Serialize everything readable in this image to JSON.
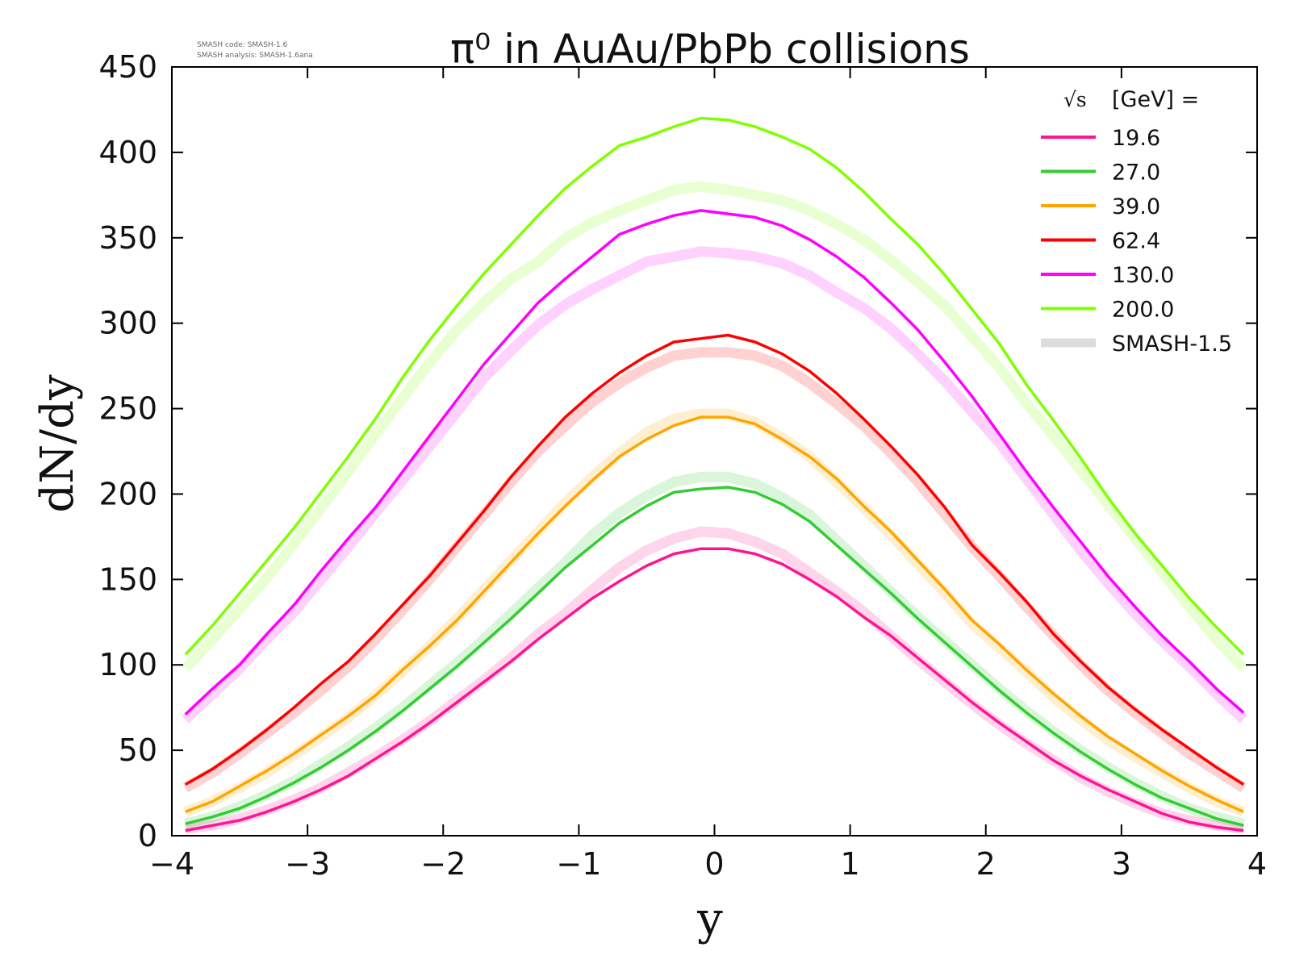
{
  "meta": {
    "code_line": "SMASH code:      SMASH-1.6",
    "analysis_line": "SMASH analysis: SMASH-1.6ana"
  },
  "chart_data": {
    "type": "line",
    "title": "π⁰ in AuAu/PbPb collisions",
    "xlabel": "y",
    "ylabel": "dN/dy",
    "xlim": [
      -4,
      4
    ],
    "ylim": [
      0,
      450
    ],
    "xticks": [
      -4,
      -3,
      -2,
      -1,
      0,
      1,
      2,
      3,
      4
    ],
    "xtick_labels": [
      "−4",
      "−3",
      "−2",
      "−1",
      "0",
      "1",
      "2",
      "3",
      "4"
    ],
    "yticks": [
      0,
      50,
      100,
      150,
      200,
      250,
      300,
      350,
      400,
      450
    ],
    "ytick_labels": [
      "0",
      "50",
      "100",
      "150",
      "200",
      "250",
      "300",
      "350",
      "400",
      "450"
    ],
    "grid": false,
    "legend": {
      "placement": "top-right",
      "title_sqrt": "√s",
      "title_text": "[GeV] =",
      "reference_label": "SMASH-1.5",
      "reference_color": "#dddddd"
    },
    "x": [
      -3.9,
      -3.7,
      -3.5,
      -3.3,
      -3.1,
      -2.9,
      -2.7,
      -2.5,
      -2.3,
      -2.1,
      -1.9,
      -1.7,
      -1.5,
      -1.3,
      -1.1,
      -0.9,
      -0.7,
      -0.5,
      -0.3,
      -0.1,
      0.1,
      0.3,
      0.5,
      0.7,
      0.9,
      1.1,
      1.3,
      1.5,
      1.7,
      1.9,
      2.1,
      2.3,
      2.5,
      2.7,
      2.9,
      3.1,
      3.3,
      3.5,
      3.7,
      3.9
    ],
    "series": [
      {
        "name": "19.6",
        "color": "#ff1493",
        "values": [
          3,
          6,
          9,
          14,
          20,
          27,
          35,
          45,
          55,
          66,
          78,
          90,
          102,
          115,
          127,
          139,
          149,
          158,
          165,
          168,
          168,
          165,
          159,
          150,
          140,
          128,
          117,
          104,
          91,
          78,
          66,
          55,
          44,
          35,
          27,
          20,
          13,
          8,
          5,
          3
        ],
        "reference": [
          4,
          6,
          10,
          15,
          21,
          28,
          37,
          46,
          56,
          67,
          79,
          91,
          104,
          118,
          130,
          144,
          157,
          167,
          174,
          178,
          177,
          172,
          165,
          154,
          143,
          131,
          117,
          103,
          90,
          77,
          65,
          54,
          44,
          34,
          26,
          19,
          13,
          9,
          6,
          4
        ]
      },
      {
        "name": "27.0",
        "color": "#33cc33",
        "values": [
          7,
          11,
          16,
          23,
          31,
          40,
          50,
          61,
          73,
          86,
          99,
          113,
          127,
          142,
          157,
          170,
          183,
          193,
          201,
          203,
          204,
          201,
          194,
          184,
          170,
          156,
          142,
          127,
          113,
          99,
          85,
          72,
          60,
          49,
          39,
          30,
          22,
          16,
          10,
          6
        ],
        "reference": [
          7,
          11,
          17,
          24,
          32,
          42,
          52,
          63,
          75,
          88,
          101,
          115,
          130,
          145,
          160,
          176,
          189,
          199,
          207,
          210,
          210,
          206,
          198,
          188,
          173,
          158,
          143,
          128,
          114,
          100,
          86,
          73,
          61,
          50,
          40,
          31,
          23,
          16,
          11,
          7
        ]
      },
      {
        "name": "39.0",
        "color": "#ffa500",
        "values": [
          14,
          20,
          29,
          38,
          48,
          59,
          70,
          82,
          97,
          111,
          126,
          143,
          160,
          177,
          193,
          208,
          222,
          232,
          240,
          245,
          245,
          241,
          232,
          222,
          209,
          193,
          178,
          161,
          144,
          126,
          112,
          97,
          83,
          70,
          58,
          48,
          38,
          29,
          21,
          14
        ],
        "reference": [
          14,
          20,
          28,
          37,
          47,
          58,
          69,
          82,
          96,
          111,
          127,
          144,
          161,
          178,
          195,
          210,
          224,
          236,
          244,
          247,
          247,
          242,
          233,
          222,
          207,
          192,
          176,
          159,
          142,
          124,
          110,
          96,
          81,
          68,
          56,
          46,
          37,
          28,
          20,
          14
        ]
      },
      {
        "name": "62.4",
        "color": "#ff0000",
        "values": [
          30,
          39,
          50,
          62,
          75,
          89,
          102,
          118,
          135,
          152,
          171,
          190,
          210,
          228,
          245,
          259,
          271,
          281,
          289,
          291,
          293,
          289,
          282,
          272,
          259,
          244,
          228,
          211,
          192,
          170,
          154,
          137,
          118,
          102,
          87,
          74,
          62,
          51,
          40,
          30
        ],
        "reference": [
          28,
          37,
          48,
          60,
          72,
          85,
          99,
          115,
          132,
          150,
          169,
          188,
          207,
          225,
          240,
          254,
          265,
          274,
          281,
          283,
          283,
          281,
          275,
          265,
          253,
          240,
          224,
          207,
          188,
          169,
          152,
          134,
          117,
          100,
          85,
          72,
          60,
          48,
          38,
          28
        ]
      },
      {
        "name": "130.0",
        "color": "#ff00ff",
        "values": [
          71,
          86,
          100,
          118,
          135,
          155,
          174,
          192,
          213,
          234,
          255,
          276,
          294,
          312,
          326,
          339,
          352,
          358,
          363,
          366,
          364,
          362,
          357,
          349,
          339,
          327,
          312,
          296,
          277,
          257,
          235,
          213,
          192,
          172,
          152,
          134,
          117,
          102,
          86,
          72
        ],
        "reference": [
          68,
          83,
          98,
          115,
          131,
          150,
          169,
          189,
          208,
          228,
          248,
          268,
          284,
          299,
          311,
          320,
          328,
          336,
          339,
          342,
          341,
          339,
          335,
          328,
          318,
          309,
          297,
          282,
          266,
          248,
          230,
          209,
          188,
          167,
          148,
          130,
          114,
          99,
          83,
          68
        ]
      },
      {
        "name": "200.0",
        "color": "#80ff00",
        "values": [
          106,
          123,
          142,
          161,
          180,
          201,
          222,
          244,
          268,
          290,
          310,
          329,
          346,
          363,
          379,
          392,
          404,
          409,
          415,
          420,
          419,
          415,
          409,
          402,
          391,
          377,
          361,
          346,
          328,
          308,
          288,
          264,
          243,
          221,
          198,
          177,
          158,
          139,
          122,
          106
        ],
        "reference": [
          98,
          115,
          133,
          151,
          171,
          192,
          213,
          235,
          256,
          277,
          296,
          312,
          326,
          336,
          350,
          359,
          366,
          372,
          378,
          380,
          378,
          375,
          372,
          366,
          358,
          349,
          337,
          324,
          310,
          292,
          274,
          253,
          234,
          214,
          194,
          174,
          154,
          134,
          115,
          98
        ]
      }
    ]
  }
}
